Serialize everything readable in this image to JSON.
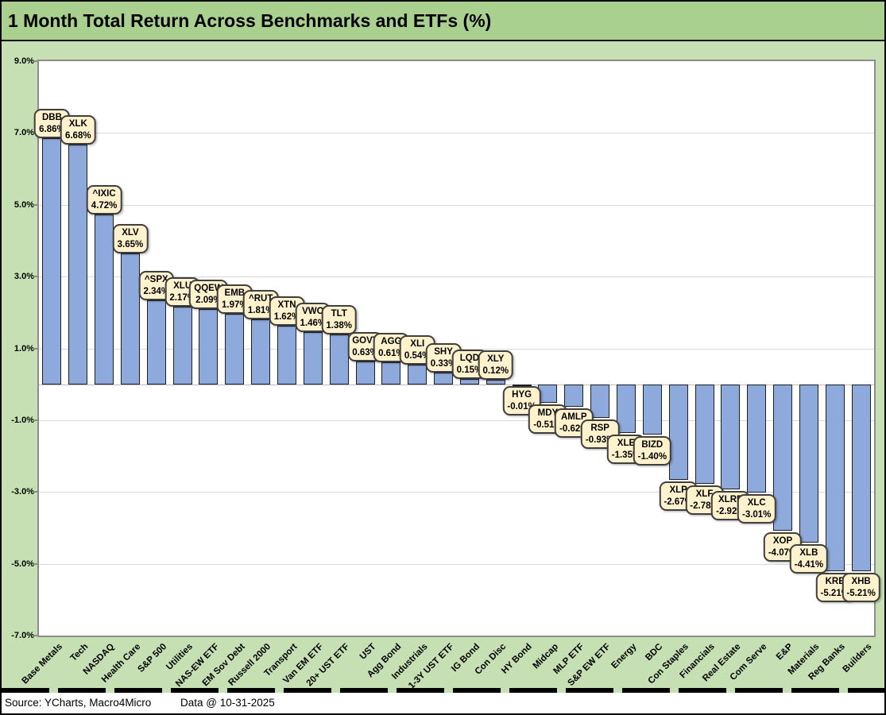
{
  "title": "1 Month Total Return Across Benchmarks and ETFs (%)",
  "footer": {
    "source": "Source: YCharts, Macro4Micro",
    "data_date": "Data @ 10-31-2025"
  },
  "colors": {
    "title_bg": "#A9D08E",
    "chart_bg": "#C6E0B4",
    "plot_bg": "#FFFFFF",
    "bar_fill": "#8EA9DB",
    "bar_border": "#1F1F1F",
    "callout_bg": "#FFF2CC",
    "callout_border": "#3F3F3F",
    "gridline": "#D9D9D9",
    "zero_line": "#BFBFBF"
  },
  "chart_data": {
    "type": "bar",
    "title": "1 Month Total Return Across Benchmarks and ETFs (%)",
    "xlabel": "",
    "ylabel": "",
    "ylim": [
      -7.0,
      9.0
    ],
    "ytick_step": 2.0,
    "grid": true,
    "legend": "none",
    "yticks": [
      {
        "value": 9.0,
        "label": "9.0%"
      },
      {
        "value": 7.0,
        "label": "7.0%"
      },
      {
        "value": 5.0,
        "label": "5.0%"
      },
      {
        "value": 3.0,
        "label": "3.0%"
      },
      {
        "value": 1.0,
        "label": "1.0%"
      },
      {
        "value": -1.0,
        "label": "-1.0%"
      },
      {
        "value": -3.0,
        "label": "-3.0%"
      },
      {
        "value": -5.0,
        "label": "-5.0%"
      },
      {
        "value": -7.0,
        "label": "-7.0%"
      }
    ],
    "categories": [
      "Base Metals",
      "Tech",
      "NASDAQ",
      "Health Care",
      "S&P 500",
      "Utilities",
      "NAS-EW ETF",
      "EM Sov Debt",
      "Russell 2000",
      "Transport",
      "Van EM ETF",
      "20+ UST ETF",
      "UST",
      "Agg Bond",
      "Industrials",
      "1-3Y UST ETF",
      "IG Bond",
      "Con Disc",
      "HY Bond",
      "Midcap",
      "MLP ETF",
      "S&P EW ETF",
      "Energy",
      "BDC",
      "Con Staples",
      "Financials",
      "Real Estate",
      "Com Serve",
      "E&P",
      "Materials",
      "Reg Banks",
      "Builders"
    ],
    "series": [
      {
        "name": "1 Month Total Return (%)",
        "values": [
          6.86,
          6.68,
          4.72,
          3.65,
          2.34,
          2.17,
          2.09,
          1.97,
          1.81,
          1.62,
          1.46,
          1.38,
          0.63,
          0.61,
          0.54,
          0.33,
          0.15,
          0.12,
          -0.01,
          -0.51,
          -0.62,
          -0.93,
          -1.35,
          -1.4,
          -2.67,
          -2.78,
          -2.92,
          -3.01,
          -4.07,
          -4.41,
          -5.21,
          -5.21
        ]
      }
    ],
    "points": [
      {
        "category": "Base Metals",
        "ticker": "DBB",
        "value": 6.86,
        "display": "6.86%"
      },
      {
        "category": "Tech",
        "ticker": "XLK",
        "value": 6.68,
        "display": "6.68%"
      },
      {
        "category": "NASDAQ",
        "ticker": "^IXIC",
        "value": 4.72,
        "display": "4.72%"
      },
      {
        "category": "Health Care",
        "ticker": "XLV",
        "value": 3.65,
        "display": "3.65%"
      },
      {
        "category": "S&P 500",
        "ticker": "^SPX",
        "value": 2.34,
        "display": "2.34%"
      },
      {
        "category": "Utilities",
        "ticker": "XLU",
        "value": 2.17,
        "display": "2.17%"
      },
      {
        "category": "NAS-EW ETF",
        "ticker": "QQEW",
        "value": 2.09,
        "display": "2.09%"
      },
      {
        "category": "EM Sov Debt",
        "ticker": "EMB",
        "value": 1.97,
        "display": "1.97%"
      },
      {
        "category": "Russell 2000",
        "ticker": "^RUT",
        "value": 1.81,
        "display": "1.81%"
      },
      {
        "category": "Transport",
        "ticker": "XTN",
        "value": 1.62,
        "display": "1.62%"
      },
      {
        "category": "Van EM ETF",
        "ticker": "VWO",
        "value": 1.46,
        "display": "1.46%"
      },
      {
        "category": "20+ UST ETF",
        "ticker": "TLT",
        "value": 1.38,
        "display": "1.38%"
      },
      {
        "category": "UST",
        "ticker": "GOVT",
        "value": 0.63,
        "display": "0.63%"
      },
      {
        "category": "Agg Bond",
        "ticker": "AGG",
        "value": 0.61,
        "display": "0.61%"
      },
      {
        "category": "Industrials",
        "ticker": "XLI",
        "value": 0.54,
        "display": "0.54%"
      },
      {
        "category": "1-3Y UST ETF",
        "ticker": "SHY",
        "value": 0.33,
        "display": "0.33%"
      },
      {
        "category": "IG Bond",
        "ticker": "LQD",
        "value": 0.15,
        "display": "0.15%"
      },
      {
        "category": "Con Disc",
        "ticker": "XLY",
        "value": 0.12,
        "display": "0.12%"
      },
      {
        "category": "HY Bond",
        "ticker": "HYG",
        "value": -0.01,
        "display": "-0.01%"
      },
      {
        "category": "Midcap",
        "ticker": "MDY",
        "value": -0.51,
        "display": "-0.51%"
      },
      {
        "category": "MLP ETF",
        "ticker": "AMLP",
        "value": -0.62,
        "display": "-0.62%"
      },
      {
        "category": "S&P EW ETF",
        "ticker": "RSP",
        "value": -0.93,
        "display": "-0.93%"
      },
      {
        "category": "Energy",
        "ticker": "XLE",
        "value": -1.35,
        "display": "-1.35%"
      },
      {
        "category": "BDC",
        "ticker": "BIZD",
        "value": -1.4,
        "display": "-1.40%"
      },
      {
        "category": "Con Staples",
        "ticker": "XLP",
        "value": -2.67,
        "display": "-2.67%"
      },
      {
        "category": "Financials",
        "ticker": "XLF",
        "value": -2.78,
        "display": "-2.78%"
      },
      {
        "category": "Real Estate",
        "ticker": "XLRE",
        "value": -2.92,
        "display": "-2.92%"
      },
      {
        "category": "Com Serve",
        "ticker": "XLC",
        "value": -3.01,
        "display": "-3.01%"
      },
      {
        "category": "E&P",
        "ticker": "XOP",
        "value": -4.07,
        "display": "-4.07%"
      },
      {
        "category": "Materials",
        "ticker": "XLB",
        "value": -4.41,
        "display": "-4.41%"
      },
      {
        "category": "Reg Banks",
        "ticker": "KRE",
        "value": -5.21,
        "display": "-5.21%"
      },
      {
        "category": "Builders",
        "ticker": "XHB",
        "value": -5.21,
        "display": "-5.21%"
      }
    ]
  }
}
